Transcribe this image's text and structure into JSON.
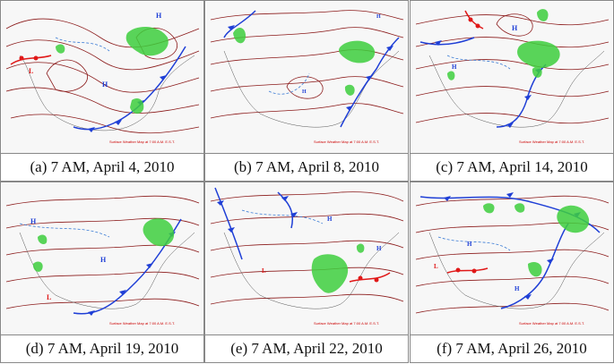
{
  "panels": [
    {
      "caption": "(a) 7 AM, April 4, 2010",
      "footer": "Surface Weather Map at 7:00 A.M. E.S.T."
    },
    {
      "caption": "(b) 7 AM, April 8, 2010",
      "footer": "Surface Weather Map at 7:00 A.M. E.S.T."
    },
    {
      "caption": "(c)  7 AM, April 14, 2010",
      "footer": "Surface Weather Map at 7:00 A.M. E.S.T."
    },
    {
      "caption": "(d) 7 AM, April 19, 2010",
      "footer": "Surface Weather Map at 7:00 A.M. E.S.T."
    },
    {
      "caption": "(e) 7 AM, April 22, 2010",
      "footer": "Surface Weather Map at 7:00 A.M. E.S.T."
    },
    {
      "caption": "(f) 7 AM, April 26, 2010",
      "footer": "Surface Weather Map at 7:00 A.M. E.S.T."
    }
  ],
  "symbols": {
    "high": "H",
    "low": "L"
  },
  "colors": {
    "isobar": "#8b1a1a",
    "front_cold": "#1f3fd6",
    "front_warm": "#e01818",
    "dashed": "#3a7bd5",
    "precip": "#3ecf3e",
    "coast": "#555555"
  }
}
